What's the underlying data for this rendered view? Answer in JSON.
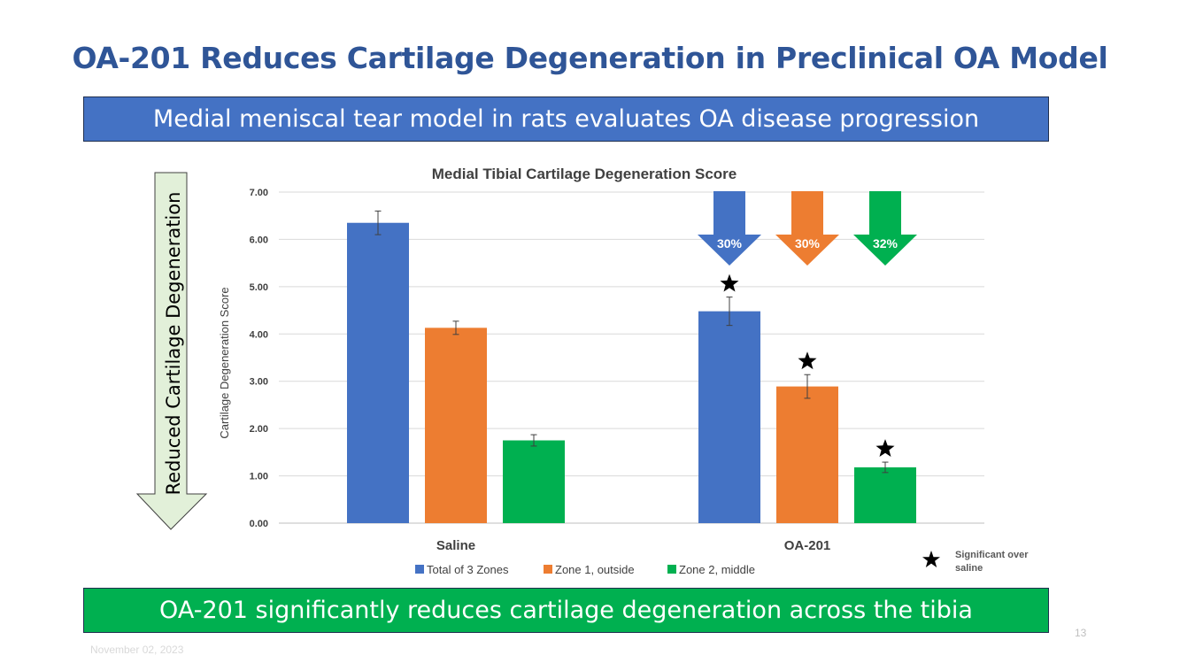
{
  "slide": {
    "title": "OA-201 Reduces Cartilage Degeneration in Preclinical OA Model",
    "subtitle_banner": "Medial meniscal tear model in rats evaluates OA disease progression",
    "conclusion_banner": "OA-201 significantly reduces cartilage degeneration across the tibia",
    "side_arrow_label": "Reduced Cartilage Degeneration",
    "footer_date": "November 02, 2023",
    "page_number": "13",
    "significance_note": "Significant over saline"
  },
  "colors": {
    "title": "#2F5597",
    "total": "#4472C4",
    "zone1": "#ED7D31",
    "zone2": "#00B050",
    "side_arrow_fill": "#E2F0D9"
  },
  "chart_data": {
    "type": "bar",
    "title": "Medial Tibial Cartilage Degeneration Score",
    "xlabel": "",
    "ylabel": "Cartilage Degeneration Score",
    "ylim": [
      0,
      7
    ],
    "yticks": [
      "0.00",
      "1.00",
      "2.00",
      "3.00",
      "4.00",
      "5.00",
      "6.00",
      "7.00"
    ],
    "grid": true,
    "legend_position": "bottom",
    "categories": [
      "Saline",
      "OA-201"
    ],
    "series": [
      {
        "name": "Total of 3 Zones",
        "values": [
          6.35,
          4.48
        ],
        "errors": [
          0.25,
          0.3
        ],
        "significant": [
          false,
          true
        ],
        "reduction": "30%"
      },
      {
        "name": "Zone 1, outside",
        "values": [
          4.13,
          2.89
        ],
        "errors": [
          0.14,
          0.25
        ],
        "significant": [
          false,
          true
        ],
        "reduction": "30%"
      },
      {
        "name": "Zone 2, middle",
        "values": [
          1.75,
          1.18
        ],
        "errors": [
          0.12,
          0.11
        ],
        "significant": [
          false,
          true
        ],
        "reduction": "32%"
      }
    ]
  }
}
